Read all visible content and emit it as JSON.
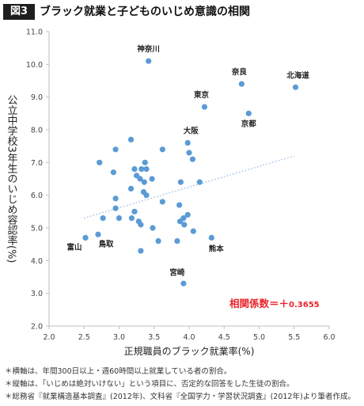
{
  "header": {
    "figure_label": "図3",
    "title": "ブラック就業と子どものいじめ意識の相関"
  },
  "chart_data": {
    "type": "scatter",
    "xlabel": "正規職員のブラック就業率(%)",
    "ylabel": "公立中学校3年生のいじめ容認率(%)",
    "xlim": [
      2.0,
      6.0
    ],
    "ylim": [
      2.0,
      11.0
    ],
    "xticks": [
      "2.0",
      "2.5",
      "3.0",
      "3.5",
      "4.0",
      "4.5",
      "5.0",
      "5.5",
      "6.0"
    ],
    "yticks": [
      "2.0",
      "3.0",
      "4.0",
      "5.0",
      "6.0",
      "7.0",
      "8.0",
      "9.0",
      "10.0",
      "11.0"
    ],
    "grid": false,
    "point_color": "#5b9bd5",
    "trendline": {
      "style": "dotted",
      "color": "#8db4e2",
      "x": [
        2.5,
        5.5
      ],
      "y": [
        5.3,
        7.2
      ]
    },
    "correlation_label": "相関係数＝＋",
    "correlation_value": "0.3655",
    "correlation_color": "#e8242a",
    "points": [
      {
        "x": 3.42,
        "y": 10.1,
        "label": "神奈川"
      },
      {
        "x": 4.75,
        "y": 9.4,
        "label": "奈良"
      },
      {
        "x": 5.52,
        "y": 9.3,
        "label": "北海道"
      },
      {
        "x": 4.22,
        "y": 8.7,
        "label": "東京"
      },
      {
        "x": 4.85,
        "y": 8.5,
        "label": "京都"
      },
      {
        "x": 3.98,
        "y": 7.6,
        "label": "大阪"
      },
      {
        "x": 2.52,
        "y": 4.7,
        "label": "富山"
      },
      {
        "x": 2.7,
        "y": 4.8,
        "label": "鳥取"
      },
      {
        "x": 4.32,
        "y": 4.7,
        "label": "熊本"
      },
      {
        "x": 3.92,
        "y": 3.3,
        "label": "宮崎"
      },
      {
        "x": 3.17,
        "y": 7.7
      },
      {
        "x": 3.62,
        "y": 7.4
      },
      {
        "x": 2.95,
        "y": 7.4
      },
      {
        "x": 4.0,
        "y": 7.3
      },
      {
        "x": 2.72,
        "y": 7.0
      },
      {
        "x": 3.37,
        "y": 7.0
      },
      {
        "x": 4.05,
        "y": 7.1
      },
      {
        "x": 3.22,
        "y": 6.8
      },
      {
        "x": 3.32,
        "y": 6.8
      },
      {
        "x": 3.39,
        "y": 6.8
      },
      {
        "x": 2.92,
        "y": 6.7
      },
      {
        "x": 3.25,
        "y": 6.6
      },
      {
        "x": 3.47,
        "y": 6.5
      },
      {
        "x": 3.3,
        "y": 6.5
      },
      {
        "x": 3.36,
        "y": 6.4
      },
      {
        "x": 3.88,
        "y": 6.4
      },
      {
        "x": 4.15,
        "y": 6.4
      },
      {
        "x": 3.17,
        "y": 6.2
      },
      {
        "x": 3.35,
        "y": 6.1
      },
      {
        "x": 3.39,
        "y": 6.0
      },
      {
        "x": 2.95,
        "y": 5.9
      },
      {
        "x": 3.62,
        "y": 5.8
      },
      {
        "x": 3.86,
        "y": 5.7
      },
      {
        "x": 3.92,
        "y": 5.3
      },
      {
        "x": 3.98,
        "y": 5.4
      },
      {
        "x": 2.95,
        "y": 5.6
      },
      {
        "x": 3.22,
        "y": 5.5
      },
      {
        "x": 2.77,
        "y": 5.3
      },
      {
        "x": 3.0,
        "y": 5.3
      },
      {
        "x": 3.18,
        "y": 5.3
      },
      {
        "x": 3.28,
        "y": 5.2
      },
      {
        "x": 3.31,
        "y": 5.1
      },
      {
        "x": 3.87,
        "y": 5.2
      },
      {
        "x": 3.48,
        "y": 5.0
      },
      {
        "x": 3.93,
        "y": 5.1
      },
      {
        "x": 4.06,
        "y": 4.9
      },
      {
        "x": 3.56,
        "y": 4.6
      },
      {
        "x": 3.83,
        "y": 4.6
      },
      {
        "x": 3.31,
        "y": 4.3
      }
    ]
  },
  "notes": [
    "＊横軸は、年間300日以上・週60時間以上就業している者の割合。",
    "＊縦軸は、「いじめは絶対いけない」という項目に、否定的な回答をした生徒の割合。",
    "＊総務省『就業構造基本調査』(2012年)、文科省『全国学力・学習状況調査』(2012年)より筆者作成。"
  ]
}
